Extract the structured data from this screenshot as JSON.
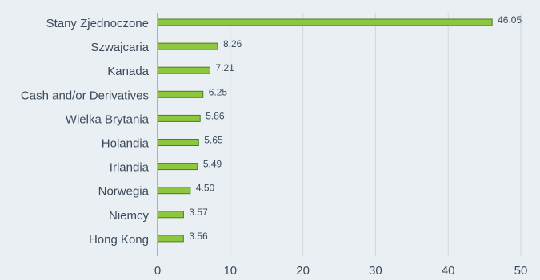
{
  "chart_data": {
    "type": "bar",
    "orientation": "horizontal",
    "categories": [
      "Stany Zjednoczone",
      "Szwajcaria",
      "Kanada",
      "Cash and/or Derivatives",
      "Wielka Brytania",
      "Holandia",
      "Irlandia",
      "Norwegia",
      "Niemcy",
      "Hong Kong"
    ],
    "values": [
      46.05,
      8.26,
      7.21,
      6.25,
      5.86,
      5.65,
      5.49,
      4.5,
      3.57,
      3.56
    ],
    "value_labels": [
      "46.05",
      "8.26",
      "7.21",
      "6.25",
      "5.86",
      "5.65",
      "5.49",
      "4.50",
      "3.57",
      "3.56"
    ],
    "xlim": [
      0,
      50
    ],
    "x_ticks": [
      0,
      10,
      20,
      30,
      40,
      50
    ],
    "grid": true,
    "legend": "none",
    "bar_color": "#8dc63f",
    "bar_edge_color": "#4f7d1a"
  }
}
